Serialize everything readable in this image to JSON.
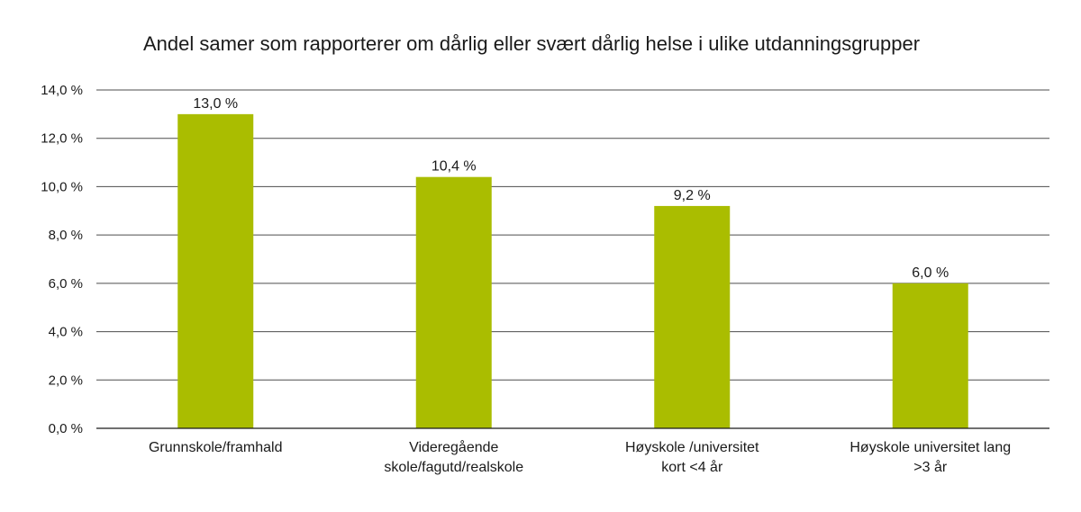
{
  "chart_data": {
    "type": "bar",
    "title": "Andel samer som rapporterer om dårlig eller svært dårlig helse i ulike utdanningsgrupper",
    "xlabel": "",
    "ylabel": "",
    "categories": [
      [
        "Grunnskole/framhald"
      ],
      [
        "Videregående",
        "skole/fagutd/realskole"
      ],
      [
        "Høyskole /universitet",
        "kort <4 år"
      ],
      [
        "Høyskole universitet lang",
        ">3 år"
      ]
    ],
    "values": [
      13.0,
      10.4,
      9.2,
      6.0
    ],
    "data_labels": [
      "13,0 %",
      "10,4 %",
      "9,2 %",
      "6,0 %"
    ],
    "yticks": [
      "0,0 %",
      "2,0 %",
      "4,0 %",
      "6,0 %",
      "8,0 %",
      "10,0 %",
      "12,0 %",
      "14,0 %"
    ],
    "ylim": [
      0,
      14
    ],
    "grid": true,
    "bar_color": "#aabd00",
    "legend": "none"
  }
}
